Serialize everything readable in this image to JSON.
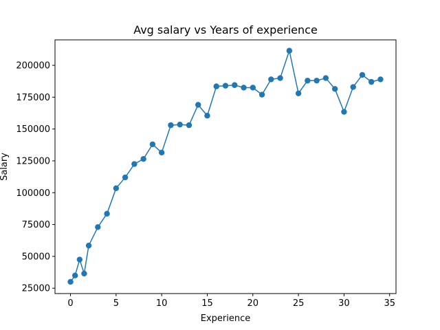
{
  "chart_data": {
    "type": "line",
    "title": "Avg salary vs Years of experience",
    "xlabel": "Experience",
    "ylabel": "Salary",
    "xlim": [
      -1.7,
      35.7
    ],
    "ylim": [
      20800,
      220000
    ],
    "xticks": [
      0,
      5,
      10,
      15,
      20,
      25,
      30,
      35
    ],
    "yticks": [
      25000,
      50000,
      75000,
      100000,
      125000,
      150000,
      175000,
      200000
    ],
    "grid": false,
    "series": [
      {
        "color": "#1f77b4",
        "marker": "circle",
        "x": [
          0,
          0.5,
          1,
          1.5,
          2,
          3,
          4,
          5,
          6,
          7,
          8,
          9,
          10,
          11,
          12,
          13,
          14,
          15,
          16,
          17,
          18,
          19,
          20,
          21,
          22,
          23,
          24,
          25,
          26,
          27,
          28,
          29,
          30,
          31,
          32,
          33,
          34
        ],
        "y": [
          30000,
          35000,
          47500,
          36500,
          58500,
          73000,
          83500,
          103500,
          112000,
          122500,
          126500,
          138000,
          131500,
          153000,
          153500,
          153000,
          169000,
          160500,
          183500,
          184000,
          184500,
          182500,
          182500,
          177000,
          189000,
          190000,
          211500,
          178000,
          188000,
          188000,
          190000,
          181500,
          163500,
          183000,
          192500,
          187000,
          189000
        ]
      }
    ]
  }
}
